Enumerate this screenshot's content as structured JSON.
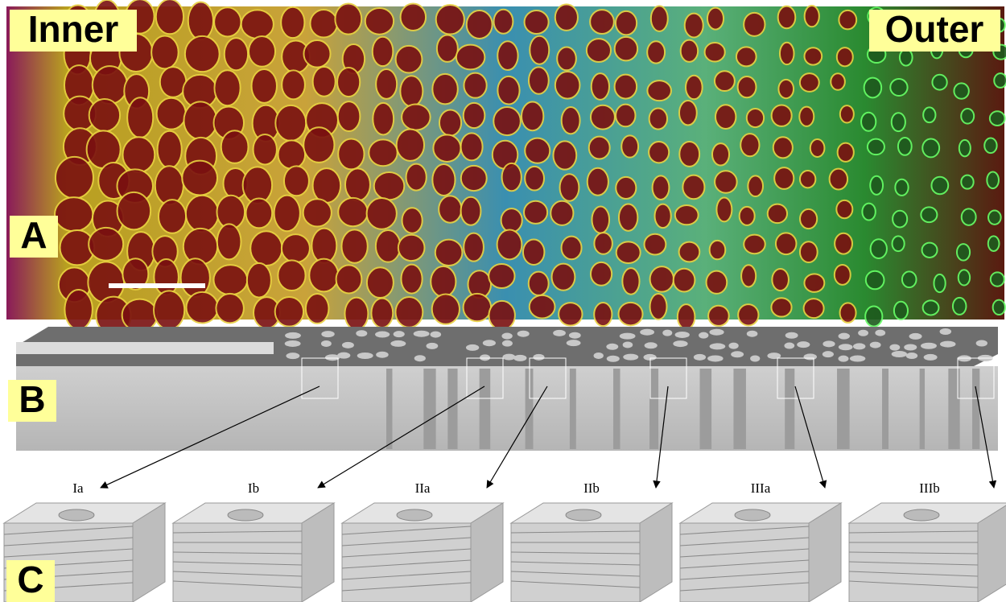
{
  "panel_a": {
    "label": "A",
    "inner": "Inner",
    "outer": "Outer"
  },
  "panel_b": {
    "label": "B"
  },
  "panel_c": {
    "label": "C",
    "blocks": [
      "Ia",
      "Ib",
      "IIa",
      "IIb",
      "IIIa",
      "IIIb"
    ]
  }
}
